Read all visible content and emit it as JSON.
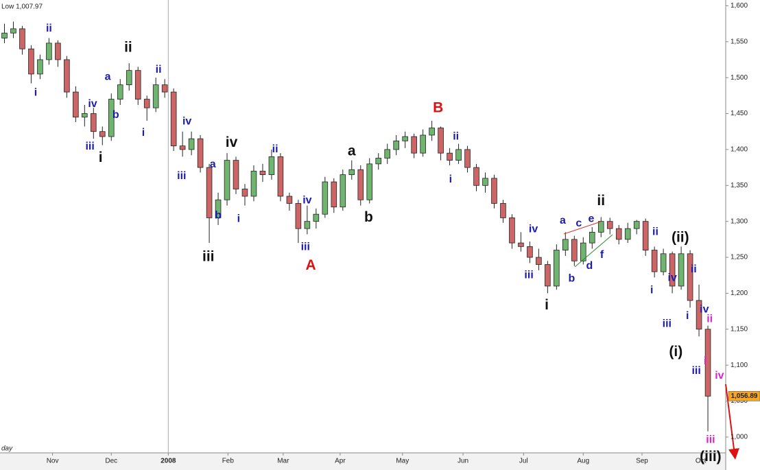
{
  "chart_data": {
    "type": "candlestick",
    "low_label": "Low 1,007.97",
    "period": "day",
    "up_color": "#6fb56f",
    "down_color": "#cc6666",
    "ylim": [
      978,
      1608
    ],
    "yticks": [
      {
        "value": 1000,
        "label": "1,000"
      },
      {
        "value": 1050,
        "label": "1,050"
      },
      {
        "value": 1100,
        "label": "1,100"
      },
      {
        "value": 1150,
        "label": "1,150"
      },
      {
        "value": 1200,
        "label": "1,200"
      },
      {
        "value": 1250,
        "label": "1,250"
      },
      {
        "value": 1300,
        "label": "1,300"
      },
      {
        "value": 1350,
        "label": "1,350"
      },
      {
        "value": 1400,
        "label": "1,400"
      },
      {
        "value": 1450,
        "label": "1,450"
      },
      {
        "value": 1500,
        "label": "1,500"
      },
      {
        "value": 1550,
        "label": "1,550"
      },
      {
        "value": 1600,
        "label": "1,600"
      }
    ],
    "xlim": [
      -0.5,
      81
    ],
    "xticks": [
      {
        "value": 5.4,
        "label": "Nov"
      },
      {
        "value": 12.0,
        "label": "Dec"
      },
      {
        "value": 18.4,
        "label": "2008"
      },
      {
        "value": 25.1,
        "label": "Feb"
      },
      {
        "value": 31.3,
        "label": "Mar"
      },
      {
        "value": 37.7,
        "label": "Apr"
      },
      {
        "value": 44.7,
        "label": "May"
      },
      {
        "value": 51.5,
        "label": "Jun"
      },
      {
        "value": 58.3,
        "label": "Jul"
      },
      {
        "value": 65.0,
        "label": "Aug"
      },
      {
        "value": 71.6,
        "label": "Sep"
      },
      {
        "value": 78.2,
        "label": "Oct"
      }
    ],
    "last_price": {
      "value": 1056.89,
      "label": "1,056.89"
    },
    "ohlc": [
      [
        1555,
        1575,
        1548,
        1562
      ],
      [
        1562,
        1578,
        1555,
        1568
      ],
      [
        1568,
        1572,
        1532,
        1540
      ],
      [
        1540,
        1545,
        1492,
        1505
      ],
      [
        1505,
        1532,
        1498,
        1525
      ],
      [
        1525,
        1555,
        1518,
        1548
      ],
      [
        1548,
        1552,
        1515,
        1525
      ],
      [
        1525,
        1530,
        1472,
        1480
      ],
      [
        1480,
        1488,
        1438,
        1445
      ],
      [
        1445,
        1462,
        1432,
        1450
      ],
      [
        1450,
        1458,
        1415,
        1425
      ],
      [
        1425,
        1432,
        1406,
        1418
      ],
      [
        1418,
        1478,
        1412,
        1470
      ],
      [
        1470,
        1498,
        1462,
        1490
      ],
      [
        1490,
        1520,
        1482,
        1510
      ],
      [
        1510,
        1515,
        1462,
        1470
      ],
      [
        1470,
        1475,
        1440,
        1458
      ],
      [
        1458,
        1500,
        1452,
        1490
      ],
      [
        1490,
        1498,
        1472,
        1480
      ],
      [
        1480,
        1485,
        1398,
        1405
      ],
      [
        1405,
        1425,
        1390,
        1400
      ],
      [
        1400,
        1425,
        1392,
        1415
      ],
      [
        1415,
        1420,
        1368,
        1375
      ],
      [
        1375,
        1380,
        1270,
        1305
      ],
      [
        1305,
        1340,
        1295,
        1330
      ],
      [
        1330,
        1395,
        1322,
        1385
      ],
      [
        1385,
        1390,
        1338,
        1345
      ],
      [
        1345,
        1352,
        1322,
        1335
      ],
      [
        1335,
        1378,
        1328,
        1370
      ],
      [
        1370,
        1380,
        1355,
        1365
      ],
      [
        1365,
        1400,
        1358,
        1390
      ],
      [
        1390,
        1395,
        1328,
        1335
      ],
      [
        1335,
        1340,
        1315,
        1325
      ],
      [
        1325,
        1330,
        1270,
        1290
      ],
      [
        1290,
        1322,
        1282,
        1300
      ],
      [
        1300,
        1318,
        1290,
        1310
      ],
      [
        1310,
        1362,
        1305,
        1355
      ],
      [
        1355,
        1360,
        1312,
        1320
      ],
      [
        1320,
        1372,
        1315,
        1365
      ],
      [
        1365,
        1385,
        1358,
        1372
      ],
      [
        1372,
        1378,
        1322,
        1330
      ],
      [
        1330,
        1388,
        1325,
        1380
      ],
      [
        1380,
        1395,
        1372,
        1388
      ],
      [
        1388,
        1408,
        1380,
        1400
      ],
      [
        1400,
        1420,
        1392,
        1412
      ],
      [
        1412,
        1425,
        1402,
        1418
      ],
      [
        1418,
        1422,
        1388,
        1395
      ],
      [
        1395,
        1428,
        1390,
        1420
      ],
      [
        1420,
        1440,
        1412,
        1430
      ],
      [
        1430,
        1432,
        1385,
        1395
      ],
      [
        1395,
        1402,
        1378,
        1385
      ],
      [
        1385,
        1408,
        1380,
        1400
      ],
      [
        1400,
        1405,
        1368,
        1375
      ],
      [
        1375,
        1380,
        1342,
        1350
      ],
      [
        1350,
        1368,
        1340,
        1360
      ],
      [
        1360,
        1365,
        1318,
        1325
      ],
      [
        1325,
        1330,
        1298,
        1305
      ],
      [
        1305,
        1310,
        1262,
        1270
      ],
      [
        1270,
        1285,
        1258,
        1265
      ],
      [
        1265,
        1272,
        1242,
        1250
      ],
      [
        1250,
        1262,
        1232,
        1240
      ],
      [
        1240,
        1245,
        1200,
        1210
      ],
      [
        1210,
        1268,
        1205,
        1260
      ],
      [
        1260,
        1285,
        1252,
        1275
      ],
      [
        1275,
        1280,
        1238,
        1245
      ],
      [
        1245,
        1278,
        1240,
        1270
      ],
      [
        1270,
        1292,
        1262,
        1285
      ],
      [
        1285,
        1306,
        1278,
        1300
      ],
      [
        1300,
        1305,
        1282,
        1290
      ],
      [
        1290,
        1295,
        1268,
        1275
      ],
      [
        1275,
        1298,
        1270,
        1290
      ],
      [
        1290,
        1302,
        1282,
        1300
      ],
      [
        1300,
        1304,
        1252,
        1260
      ],
      [
        1260,
        1265,
        1222,
        1230
      ],
      [
        1230,
        1262,
        1225,
        1255
      ],
      [
        1255,
        1258,
        1200,
        1210
      ],
      [
        1210,
        1265,
        1205,
        1255
      ],
      [
        1255,
        1260,
        1180,
        1190
      ],
      [
        1190,
        1212,
        1140,
        1150
      ],
      [
        1150,
        1155,
        1007.97,
        1056.89
      ]
    ],
    "annotations": [
      {
        "text": "i",
        "x": 3.5,
        "y": 1479,
        "color": "#1c1ca8"
      },
      {
        "text": "ii",
        "x": 5.0,
        "y": 1568,
        "color": "#1c1ca8"
      },
      {
        "text": "ii",
        "x": 13.9,
        "y": 1541,
        "color": "#111111"
      },
      {
        "text": "iv",
        "x": 9.9,
        "y": 1463,
        "color": "#1c1ca8"
      },
      {
        "text": "iii",
        "x": 9.6,
        "y": 1404,
        "color": "#1c1ca8"
      },
      {
        "text": "i",
        "x": 10.8,
        "y": 1388,
        "color": "#111111"
      },
      {
        "text": "a",
        "x": 11.6,
        "y": 1501,
        "color": "#1c1ca8"
      },
      {
        "text": "b",
        "x": 12.5,
        "y": 1448,
        "color": "#1c1ca8"
      },
      {
        "text": "i",
        "x": 15.6,
        "y": 1423,
        "color": "#1c1ca8"
      },
      {
        "text": "ii",
        "x": 17.3,
        "y": 1511,
        "color": "#1c1ca8"
      },
      {
        "text": "iv",
        "x": 20.5,
        "y": 1439,
        "color": "#1c1ca8"
      },
      {
        "text": "iii",
        "x": 19.9,
        "y": 1363,
        "color": "#1c1ca8"
      },
      {
        "text": "a",
        "x": 23.4,
        "y": 1379,
        "color": "#1c1ca8"
      },
      {
        "text": "b",
        "x": 24.0,
        "y": 1308,
        "color": "#1c1ca8"
      },
      {
        "text": "iv",
        "x": 25.5,
        "y": 1409,
        "color": "#111111"
      },
      {
        "text": "iii",
        "x": 22.9,
        "y": 1250,
        "color": "#111111"
      },
      {
        "text": "ii",
        "x": 30.4,
        "y": 1400,
        "color": "#1c1ca8"
      },
      {
        "text": "i",
        "x": 26.3,
        "y": 1303,
        "color": "#1c1ca8"
      },
      {
        "text": "iv",
        "x": 34.0,
        "y": 1329,
        "color": "#1c1ca8"
      },
      {
        "text": "iii",
        "x": 33.8,
        "y": 1264,
        "color": "#1c1ca8"
      },
      {
        "text": "A",
        "x": 34.4,
        "y": 1238,
        "color": "#dd1111"
      },
      {
        "text": "a",
        "x": 39.0,
        "y": 1397,
        "color": "#111111"
      },
      {
        "text": "b",
        "x": 40.9,
        "y": 1305,
        "color": "#111111"
      },
      {
        "text": "B",
        "x": 48.7,
        "y": 1457,
        "color": "#dd1111"
      },
      {
        "text": "ii",
        "x": 50.7,
        "y": 1418,
        "color": "#1c1ca8"
      },
      {
        "text": "i",
        "x": 50.1,
        "y": 1358,
        "color": "#1c1ca8"
      },
      {
        "text": "iv",
        "x": 59.4,
        "y": 1289,
        "color": "#1c1ca8"
      },
      {
        "text": "iii",
        "x": 58.9,
        "y": 1225,
        "color": "#1c1ca8"
      },
      {
        "text": "i",
        "x": 60.9,
        "y": 1183,
        "color": "#111111"
      },
      {
        "text": "a",
        "x": 62.7,
        "y": 1301,
        "color": "#1c1ca8"
      },
      {
        "text": "c",
        "x": 64.5,
        "y": 1297,
        "color": "#1c1ca8"
      },
      {
        "text": "e",
        "x": 65.9,
        "y": 1303,
        "color": "#1c1ca8"
      },
      {
        "text": "ii",
        "x": 67.0,
        "y": 1328,
        "color": "#111111"
      },
      {
        "text": "b",
        "x": 63.7,
        "y": 1220,
        "color": "#1c1ca8"
      },
      {
        "text": "d",
        "x": 65.7,
        "y": 1238,
        "color": "#1c1ca8"
      },
      {
        "text": "f",
        "x": 67.1,
        "y": 1253,
        "color": "#1c1ca8"
      },
      {
        "text": "ii",
        "x": 73.1,
        "y": 1285,
        "color": "#1c1ca8"
      },
      {
        "text": "(ii)",
        "x": 75.9,
        "y": 1277,
        "color": "#111111"
      },
      {
        "text": "i",
        "x": 72.7,
        "y": 1204,
        "color": "#1c1ca8"
      },
      {
        "text": "iv",
        "x": 75.0,
        "y": 1221,
        "color": "#1c1ca8"
      },
      {
        "text": "iii",
        "x": 74.4,
        "y": 1157,
        "color": "#1c1ca8"
      },
      {
        "text": "(i)",
        "x": 75.4,
        "y": 1118,
        "color": "#111111"
      },
      {
        "text": "ii",
        "x": 77.4,
        "y": 1233,
        "color": "#1c1ca8"
      },
      {
        "text": "i",
        "x": 76.7,
        "y": 1168,
        "color": "#1c1ca8"
      },
      {
        "text": "iv",
        "x": 78.6,
        "y": 1177,
        "color": "#1c1ca8"
      },
      {
        "text": "ii",
        "x": 79.2,
        "y": 1164,
        "color": "#dd22cc"
      },
      {
        "text": "i",
        "x": 78.7,
        "y": 1105,
        "color": "#dd22cc"
      },
      {
        "text": "iii",
        "x": 77.7,
        "y": 1092,
        "color": "#1c1ca8"
      },
      {
        "text": "iv",
        "x": 80.3,
        "y": 1085,
        "color": "#dd22cc"
      },
      {
        "text": "iii",
        "x": 79.3,
        "y": 996,
        "color": "#dd22cc"
      },
      {
        "text": "(iii)",
        "x": 79.3,
        "y": 972,
        "color": "#111111"
      }
    ]
  }
}
